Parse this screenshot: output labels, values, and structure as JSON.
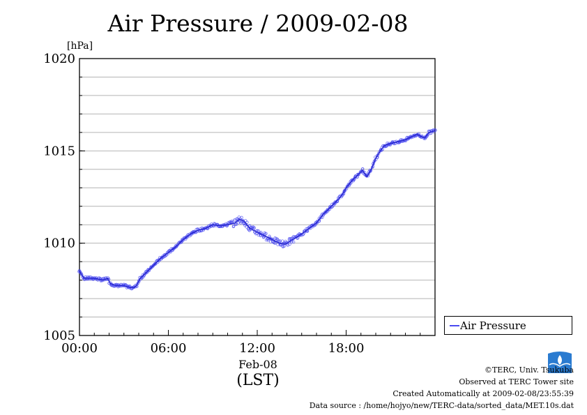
{
  "chart_data": {
    "type": "line",
    "title": "Air Pressure / 2009-02-08",
    "ylabel": "[hPa]",
    "xlabel": "Feb-08",
    "xlabel_sub": "(LST)",
    "ylim": [
      1005,
      1020
    ],
    "xlim_hours": [
      0,
      24
    ],
    "y_ticks": [
      "1005",
      "1010",
      "1015",
      "1020"
    ],
    "x_ticks": [
      {
        "hour": 0,
        "label": "00:00"
      },
      {
        "hour": 6,
        "label": "06:00"
      },
      {
        "hour": 12,
        "label": "12:00"
      },
      {
        "hour": 18,
        "label": "18:00"
      }
    ],
    "grid": true,
    "legend_position": "right-bottom",
    "series": [
      {
        "name": "Air Pressure",
        "color": "#4a4af0",
        "hours": [
          0.0,
          0.3,
          1.0,
          1.6,
          1.9,
          2.1,
          2.5,
          3.0,
          3.4,
          3.7,
          3.85,
          4.1,
          4.5,
          5.0,
          5.5,
          6.0,
          6.5,
          7.0,
          7.5,
          8.0,
          8.5,
          9.0,
          9.5,
          10.0,
          10.5,
          10.8,
          11.1,
          11.5,
          12.0,
          12.5,
          13.0,
          13.5,
          13.9,
          14.2,
          14.6,
          15.0,
          15.5,
          16.0,
          16.5,
          17.0,
          17.5,
          17.8,
          18.0,
          18.4,
          18.8,
          19.1,
          19.4,
          19.7,
          20.0,
          20.3,
          20.6,
          21.0,
          21.5,
          22.0,
          22.5,
          22.8,
          23.0,
          23.3,
          23.6,
          24.0
        ],
        "values": [
          1008.5,
          1008.1,
          1008.1,
          1008.0,
          1008.1,
          1007.8,
          1007.7,
          1007.7,
          1007.6,
          1007.6,
          1007.7,
          1008.1,
          1008.4,
          1008.8,
          1009.2,
          1009.5,
          1009.8,
          1010.2,
          1010.5,
          1010.7,
          1010.8,
          1011.0,
          1010.95,
          1011.0,
          1011.1,
          1011.3,
          1011.2,
          1010.8,
          1010.6,
          1010.4,
          1010.2,
          1010.0,
          1009.95,
          1010.1,
          1010.3,
          1010.5,
          1010.8,
          1011.1,
          1011.6,
          1012.0,
          1012.4,
          1012.7,
          1013.0,
          1013.4,
          1013.7,
          1013.95,
          1013.6,
          1014.0,
          1014.6,
          1015.0,
          1015.3,
          1015.4,
          1015.5,
          1015.6,
          1015.8,
          1015.9,
          1015.8,
          1015.7,
          1016.0,
          1016.1
        ]
      }
    ]
  },
  "legend": {
    "label": "Air Pressure"
  },
  "footer": {
    "line1": "©TERC, Univ. Tsukuba",
    "line2": "Observed at TERC Tower site",
    "line3": "Created Automatically at 2009-02-08/23:55:39",
    "line4": "Data source : /home/hojyo/new/TERC-data/sorted_data/MET.10s.dat"
  },
  "logo": {
    "text": "TERC",
    "color": "#2a7bd0"
  }
}
